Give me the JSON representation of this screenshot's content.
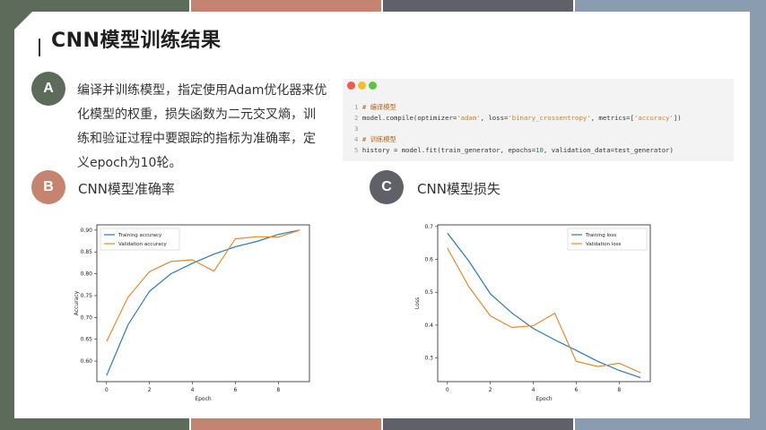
{
  "colors": {
    "green": "#5c6b5a",
    "terracotta": "#c48470",
    "slate": "#5f6068",
    "blue_gray": "#8a9cb0",
    "train": "#2c79b8",
    "val": "#e28b2e"
  },
  "slide": {
    "title": "CNN模型训练结果"
  },
  "section_a": {
    "badge": "A",
    "lines": [
      "编译并训练模型，指定使用Adam优化器来优",
      "化模型的权重，损失函数为二元交叉熵，训",
      "练和验证过程中要跟踪的指标为准确率，定",
      "义epoch为10轮。"
    ]
  },
  "code": {
    "lines": [
      {
        "n": "1",
        "text": "# 编译模型"
      },
      {
        "n": "2",
        "parts": [
          "model.compile(optimizer=",
          "'adam'",
          ", loss=",
          "'binary_crossentropy'",
          ", metrics=[",
          "'accuracy'",
          "])"
        ]
      },
      {
        "n": "3",
        "text": ""
      },
      {
        "n": "4",
        "text": "# 训练模型"
      },
      {
        "n": "5",
        "parts": [
          "history = model.fit(train_generator, epochs=",
          "10",
          ", validation_data=test_generator)"
        ]
      }
    ]
  },
  "section_b": {
    "badge": "B",
    "label": "CNN模型准确率"
  },
  "section_c": {
    "badge": "C",
    "label": "CNN模型损失"
  },
  "chart_data": [
    {
      "type": "line",
      "xlabel": "Epoch",
      "ylabel": "Accuracy",
      "xlim": [
        -0.45,
        9.45
      ],
      "ylim": [
        0.553,
        0.912
      ],
      "x_ticks": [
        0,
        2,
        4,
        6,
        8
      ],
      "y_ticks": [
        0.6,
        0.65,
        0.7,
        0.75,
        0.8,
        0.85,
        0.9
      ],
      "y_tick_labels": [
        "0.60",
        "0.65",
        "0.70",
        "0.75",
        "0.80",
        "0.85",
        "0.90"
      ],
      "legend": "top-left",
      "x": [
        0,
        1,
        2,
        3,
        4,
        5,
        6,
        7,
        8,
        9
      ],
      "series": [
        {
          "name": "Training accuracy",
          "values": [
            0.567,
            0.683,
            0.76,
            0.8,
            0.824,
            0.845,
            0.862,
            0.874,
            0.89,
            0.9
          ]
        },
        {
          "name": "Validation accuracy",
          "values": [
            0.645,
            0.746,
            0.805,
            0.828,
            0.832,
            0.806,
            0.88,
            0.885,
            0.884,
            0.9
          ]
        }
      ]
    },
    {
      "type": "line",
      "xlabel": "Epoch",
      "ylabel": "Loss",
      "xlim": [
        -0.45,
        9.45
      ],
      "ylim": [
        0.228,
        0.705
      ],
      "x_ticks": [
        0,
        2,
        4,
        6,
        8
      ],
      "y_ticks": [
        0.3,
        0.4,
        0.5,
        0.6,
        0.7
      ],
      "y_tick_labels": [
        "0.3",
        "0.4",
        "0.5",
        "0.6",
        "0.7"
      ],
      "legend": "top-right",
      "x": [
        0,
        1,
        2,
        3,
        4,
        5,
        6,
        7,
        8,
        9
      ],
      "series": [
        {
          "name": "Training loss",
          "values": [
            0.68,
            0.595,
            0.495,
            0.437,
            0.39,
            0.355,
            0.323,
            0.29,
            0.262,
            0.24
          ]
        },
        {
          "name": "Validation loss",
          "values": [
            0.634,
            0.517,
            0.428,
            0.393,
            0.398,
            0.436,
            0.29,
            0.274,
            0.284,
            0.255
          ]
        }
      ]
    }
  ]
}
